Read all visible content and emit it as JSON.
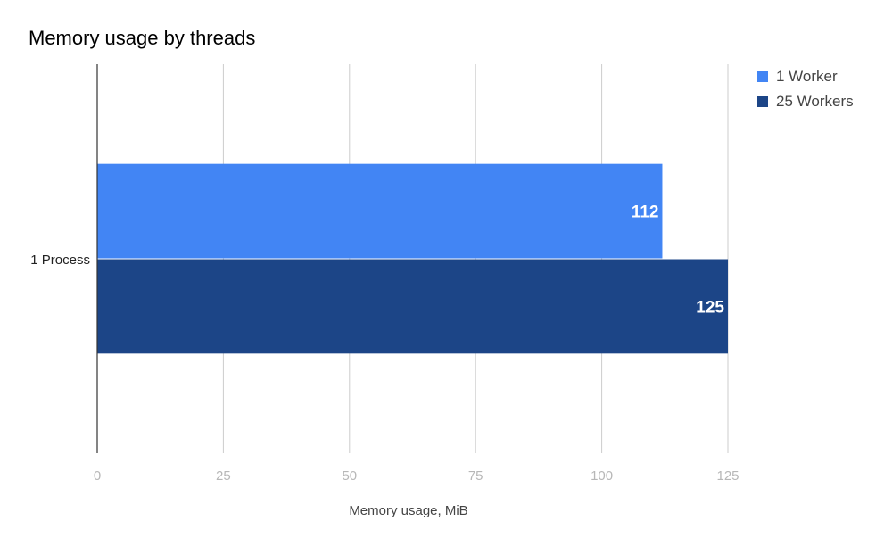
{
  "chart_data": {
    "type": "bar",
    "orientation": "horizontal",
    "title": "Memory usage by threads",
    "xlabel": "Memory usage, MiB",
    "ylabel": "",
    "categories": [
      "1 Process"
    ],
    "series": [
      {
        "name": "1 Worker",
        "values": [
          112
        ],
        "color": "#4285f4"
      },
      {
        "name": "25 Workers",
        "values": [
          125
        ],
        "color": "#1c4587"
      }
    ],
    "xlim": [
      0,
      125
    ],
    "xticks": [
      0,
      25,
      50,
      75,
      100,
      125
    ],
    "grid": true,
    "data_labels": true,
    "legend_position": "right"
  }
}
